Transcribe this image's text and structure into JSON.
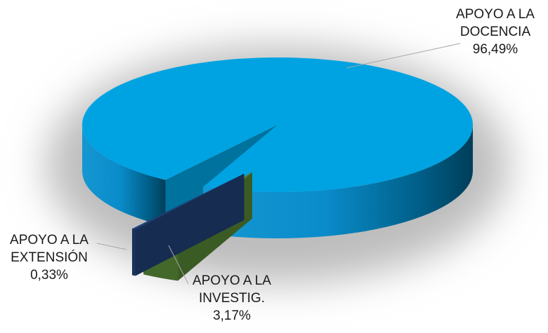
{
  "chart_data": {
    "type": "pie3d",
    "categories": [
      "APOYO A LA DOCENCIA",
      "APOYO A LA INVESTIG.",
      "APOYO A LA EXTENSIÓN"
    ],
    "values": [
      96.49,
      3.17,
      0.33
    ],
    "value_labels": [
      "96,49%",
      "3,17%",
      "0,33%"
    ],
    "colors": [
      "#00a3e2",
      "#548235",
      "#203f74"
    ]
  }
}
